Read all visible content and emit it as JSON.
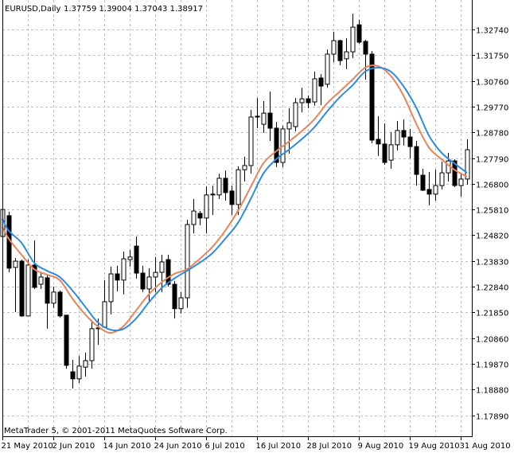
{
  "header": {
    "symbol_timeframe": "EURUSD,Daily",
    "ohlc_readout": "1.37759 1.39004 1.37043 1.38917"
  },
  "footer": {
    "copyright": "MetaTrader 5, © 2001-2011 MetaQuotes Software Corp."
  },
  "colors": {
    "bull_body": "#ffffff",
    "bear_body": "#000000",
    "candle_outline": "#000000",
    "ma_fast": "#e8845a",
    "ma_slow": "#2e8be0",
    "grid": "#c0c0c0",
    "background": "#ffffff"
  },
  "chart_data": {
    "type": "candlestick",
    "symbol": "EURUSD",
    "timeframe": "Daily",
    "grid": true,
    "ylim": [
      1.1708,
      1.3375
    ],
    "y_ticks": [
      "1.32740",
      "1.31750",
      "1.30760",
      "1.29770",
      "1.28780",
      "1.27790",
      "1.26800",
      "1.25810",
      "1.24820",
      "1.23830",
      "1.22840",
      "1.21850",
      "1.20860",
      "1.19870",
      "1.18880",
      "1.17890"
    ],
    "x_ticks": [
      {
        "date": "2010-05-21",
        "label": "21 May 2010"
      },
      {
        "date": "2010-06-02",
        "label": "2 Jun 2010"
      },
      {
        "date": "2010-06-14",
        "label": "14 Jun 2010"
      },
      {
        "date": "2010-06-24",
        "label": "24 Jun 2010"
      },
      {
        "date": "2010-07-06",
        "label": "6 Jul 2010"
      },
      {
        "date": "2010-07-16",
        "label": "16 Jul 2010"
      },
      {
        "date": "2010-07-28",
        "label": "28 Jul 2010"
      },
      {
        "date": "2010-08-09",
        "label": "9 Aug 2010"
      },
      {
        "date": "2010-08-19",
        "label": "19 Aug 2010"
      },
      {
        "date": "2010-08-31",
        "label": "31 Aug 2010"
      }
    ],
    "candles_columns": [
      "date",
      "open",
      "high",
      "low",
      "close"
    ],
    "candles": [
      [
        "2010-05-21",
        1.2477,
        1.2597,
        1.2468,
        1.2581
      ],
      [
        "2010-05-24",
        1.2557,
        1.2572,
        1.2339,
        1.2355
      ],
      [
        "2010-05-25",
        1.2358,
        1.2394,
        1.2186,
        1.2382
      ],
      [
        "2010-05-26",
        1.2382,
        1.2388,
        1.2168,
        1.2171
      ],
      [
        "2010-05-27",
        1.2171,
        1.2388,
        1.2171,
        1.2367
      ],
      [
        "2010-05-28",
        1.2367,
        1.2462,
        1.2275,
        1.2281
      ],
      [
        "2010-05-31",
        1.2293,
        1.2336,
        1.2275,
        1.2321
      ],
      [
        "2010-06-01",
        1.2318,
        1.233,
        1.2122,
        1.222
      ],
      [
        "2010-06-02",
        1.222,
        1.2284,
        1.2202,
        1.2263
      ],
      [
        "2010-06-03",
        1.2263,
        1.2269,
        1.2165,
        1.2171
      ],
      [
        "2010-06-04",
        1.2174,
        1.2174,
        1.1968,
        1.1981
      ],
      [
        "2010-06-07",
        1.1956,
        1.2002,
        1.1892,
        1.1929
      ],
      [
        "2010-06-08",
        1.1929,
        1.2017,
        1.1913,
        1.1978
      ],
      [
        "2010-06-09",
        1.1974,
        1.203,
        1.1938,
        1.1999
      ],
      [
        "2010-06-10",
        1.1999,
        1.2155,
        1.1968,
        1.2122
      ],
      [
        "2010-06-11",
        1.2122,
        1.2161,
        1.206,
        1.2125
      ],
      [
        "2010-06-14",
        1.2128,
        1.2309,
        1.2125,
        1.2226
      ],
      [
        "2010-06-15",
        1.2226,
        1.2361,
        1.2177,
        1.2333
      ],
      [
        "2010-06-16",
        1.2333,
        1.2364,
        1.2266,
        1.2309
      ],
      [
        "2010-06-17",
        1.2309,
        1.2419,
        1.2254,
        1.2391
      ],
      [
        "2010-06-18",
        1.2388,
        1.2425,
        1.2361,
        1.2398
      ],
      [
        "2010-06-21",
        1.244,
        1.2477,
        1.2315,
        1.2336
      ],
      [
        "2010-06-22",
        1.2336,
        1.2364,
        1.2263,
        1.2275
      ],
      [
        "2010-06-23",
        1.2275,
        1.2355,
        1.2223,
        1.2321
      ],
      [
        "2010-06-24",
        1.2321,
        1.2398,
        1.2263,
        1.2339
      ],
      [
        "2010-06-25",
        1.2339,
        1.2407,
        1.2263,
        1.2379
      ],
      [
        "2010-06-28",
        1.2388,
        1.2407,
        1.2284,
        1.2293
      ],
      [
        "2010-06-29",
        1.2293,
        1.2306,
        1.2161,
        1.2199
      ],
      [
        "2010-06-30",
        1.2199,
        1.2263,
        1.218,
        1.2241
      ],
      [
        "2010-07-01",
        1.2241,
        1.2541,
        1.2202,
        1.2523
      ],
      [
        "2010-07-02",
        1.2523,
        1.2621,
        1.2489,
        1.2575
      ],
      [
        "2010-07-05",
        1.2566,
        1.2575,
        1.252,
        1.2548
      ],
      [
        "2010-07-06",
        1.2548,
        1.267,
        1.2489,
        1.2637
      ],
      [
        "2010-07-07",
        1.2637,
        1.2673,
        1.256,
        1.264
      ],
      [
        "2010-07-08",
        1.2637,
        1.2719,
        1.2621,
        1.2701
      ],
      [
        "2010-07-09",
        1.2701,
        1.2731,
        1.2615,
        1.2646
      ],
      [
        "2010-07-12",
        1.2652,
        1.2673,
        1.256,
        1.26
      ],
      [
        "2010-07-13",
        1.26,
        1.2747,
        1.256,
        1.2734
      ],
      [
        "2010-07-14",
        1.2734,
        1.2784,
        1.2689,
        1.275
      ],
      [
        "2010-07-15",
        1.275,
        1.2964,
        1.2719,
        1.2937
      ],
      [
        "2010-07-16",
        1.2937,
        1.301,
        1.2894,
        1.294
      ],
      [
        "2010-07-19",
        1.2909,
        1.2998,
        1.2876,
        1.2952
      ],
      [
        "2010-07-20",
        1.2952,
        1.3035,
        1.2845,
        1.2894
      ],
      [
        "2010-07-21",
        1.2894,
        1.2918,
        1.2744,
        1.2762
      ],
      [
        "2010-07-22",
        1.2762,
        1.2903,
        1.2744,
        1.2891
      ],
      [
        "2010-07-23",
        1.2891,
        1.2971,
        1.2796,
        1.2915
      ],
      [
        "2010-07-26",
        1.29,
        1.301,
        1.2882,
        1.2992
      ],
      [
        "2010-07-27",
        1.2992,
        1.305,
        1.2955,
        1.3007
      ],
      [
        "2010-07-28",
        1.3007,
        1.302,
        1.2971,
        1.2992
      ],
      [
        "2010-07-29",
        1.2995,
        1.3112,
        1.298,
        1.3084
      ],
      [
        "2010-07-30",
        1.3087,
        1.3102,
        1.2983,
        1.3056
      ],
      [
        "2010-08-02",
        1.3063,
        1.3197,
        1.305,
        1.3179
      ],
      [
        "2010-08-03",
        1.3179,
        1.3265,
        1.3148,
        1.3231
      ],
      [
        "2010-08-04",
        1.3231,
        1.3234,
        1.3136,
        1.3154
      ],
      [
        "2010-08-05",
        1.3161,
        1.324,
        1.3121,
        1.3188
      ],
      [
        "2010-08-06",
        1.3188,
        1.3335,
        1.3164,
        1.3283
      ],
      [
        "2010-08-09",
        1.3292,
        1.3311,
        1.3219,
        1.3225
      ],
      [
        "2010-08-10",
        1.3228,
        1.3234,
        1.3081,
        1.3179
      ],
      [
        "2010-08-11",
        1.3179,
        1.3191,
        1.2836,
        1.2848
      ],
      [
        "2010-08-12",
        1.2851,
        1.294,
        1.2787,
        1.2833
      ],
      [
        "2010-08-13",
        1.2833,
        1.2912,
        1.2753,
        1.2762
      ],
      [
        "2010-08-16",
        1.2771,
        1.2879,
        1.2738,
        1.283
      ],
      [
        "2010-08-17",
        1.283,
        1.2922,
        1.2808,
        1.2885
      ],
      [
        "2010-08-18",
        1.2885,
        1.2928,
        1.2827,
        1.286
      ],
      [
        "2010-08-19",
        1.286,
        1.2891,
        1.2777,
        1.2823
      ],
      [
        "2010-08-20",
        1.2823,
        1.2845,
        1.2673,
        1.2716
      ],
      [
        "2010-08-23",
        1.2713,
        1.2738,
        1.2652,
        1.2655
      ],
      [
        "2010-08-24",
        1.2658,
        1.2725,
        1.2597,
        1.264
      ],
      [
        "2010-08-25",
        1.264,
        1.2734,
        1.2615,
        1.2673
      ],
      [
        "2010-08-26",
        1.2673,
        1.2765,
        1.2658,
        1.2722
      ],
      [
        "2010-08-27",
        1.2722,
        1.2799,
        1.2689,
        1.2768
      ],
      [
        "2010-08-30",
        1.2768,
        1.2774,
        1.2667,
        1.2673
      ],
      [
        "2010-08-31",
        1.2673,
        1.2722,
        1.263,
        1.2698
      ],
      [
        "2010-09-01",
        1.2698,
        1.2851,
        1.2676,
        1.2811
      ]
    ],
    "series": [
      {
        "color": "#e8845a",
        "points": [
          [
            "2010-05-21",
            1.2514
          ],
          [
            "2010-05-24",
            1.2468
          ],
          [
            "2010-05-26",
            1.2407
          ],
          [
            "2010-05-28",
            1.2351
          ],
          [
            "2010-06-01",
            1.233
          ],
          [
            "2010-06-03",
            1.2309
          ],
          [
            "2010-06-07",
            1.2238
          ],
          [
            "2010-06-09",
            1.2177
          ],
          [
            "2010-06-11",
            1.2131
          ],
          [
            "2010-06-15",
            1.2106
          ],
          [
            "2010-06-17",
            1.2131
          ],
          [
            "2010-06-21",
            1.2192
          ],
          [
            "2010-06-23",
            1.2254
          ],
          [
            "2010-06-25",
            1.23
          ],
          [
            "2010-06-29",
            1.2333
          ],
          [
            "2010-07-01",
            1.2351
          ],
          [
            "2010-07-05",
            1.2391
          ],
          [
            "2010-07-07",
            1.2437
          ],
          [
            "2010-07-09",
            1.2499
          ],
          [
            "2010-07-13",
            1.2575
          ],
          [
            "2010-07-15",
            1.2667
          ],
          [
            "2010-07-19",
            1.2759
          ],
          [
            "2010-07-21",
            1.2805
          ],
          [
            "2010-07-23",
            1.2842
          ],
          [
            "2010-07-27",
            1.2882
          ],
          [
            "2010-07-29",
            1.2928
          ],
          [
            "2010-08-02",
            1.2989
          ],
          [
            "2010-08-04",
            1.3035
          ],
          [
            "2010-08-06",
            1.3081
          ],
          [
            "2010-08-10",
            1.3127
          ],
          [
            "2010-08-12",
            1.3133
          ],
          [
            "2010-08-16",
            1.3096
          ],
          [
            "2010-08-18",
            1.302
          ],
          [
            "2010-08-20",
            1.2912
          ],
          [
            "2010-08-24",
            1.282
          ],
          [
            "2010-08-26",
            1.2774
          ],
          [
            "2010-08-30",
            1.2734
          ],
          [
            "2010-09-01",
            1.2707
          ]
        ]
      },
      {
        "color": "#2e8be0",
        "points": [
          [
            "2010-05-21",
            1.2545
          ],
          [
            "2010-05-24",
            1.2499
          ],
          [
            "2010-05-26",
            1.2453
          ],
          [
            "2010-05-28",
            1.2376
          ],
          [
            "2010-06-01",
            1.2345
          ],
          [
            "2010-06-03",
            1.2321
          ],
          [
            "2010-06-07",
            1.2269
          ],
          [
            "2010-06-09",
            1.2207
          ],
          [
            "2010-06-11",
            1.2146
          ],
          [
            "2010-06-15",
            1.2118
          ],
          [
            "2010-06-17",
            1.2121
          ],
          [
            "2010-06-21",
            1.2161
          ],
          [
            "2010-06-23",
            1.2223
          ],
          [
            "2010-06-25",
            1.2278
          ],
          [
            "2010-06-29",
            1.2315
          ],
          [
            "2010-07-01",
            1.2345
          ],
          [
            "2010-07-05",
            1.2376
          ],
          [
            "2010-07-07",
            1.2413
          ],
          [
            "2010-07-09",
            1.2468
          ],
          [
            "2010-07-13",
            1.2529
          ],
          [
            "2010-07-15",
            1.2621
          ],
          [
            "2010-07-19",
            1.2719
          ],
          [
            "2010-07-21",
            1.2774
          ],
          [
            "2010-07-23",
            1.2811
          ],
          [
            "2010-07-27",
            1.2851
          ],
          [
            "2010-07-29",
            1.2897
          ],
          [
            "2010-08-02",
            1.2958
          ],
          [
            "2010-08-04",
            1.3013
          ],
          [
            "2010-08-06",
            1.3059
          ],
          [
            "2010-08-10",
            1.3112
          ],
          [
            "2010-08-12",
            1.3127
          ],
          [
            "2010-08-16",
            1.3112
          ],
          [
            "2010-08-18",
            1.3056
          ],
          [
            "2010-08-20",
            1.2974
          ],
          [
            "2010-08-24",
            1.2866
          ],
          [
            "2010-08-26",
            1.2799
          ],
          [
            "2010-08-30",
            1.2759
          ],
          [
            "2010-09-01",
            1.2722
          ]
        ]
      }
    ]
  }
}
